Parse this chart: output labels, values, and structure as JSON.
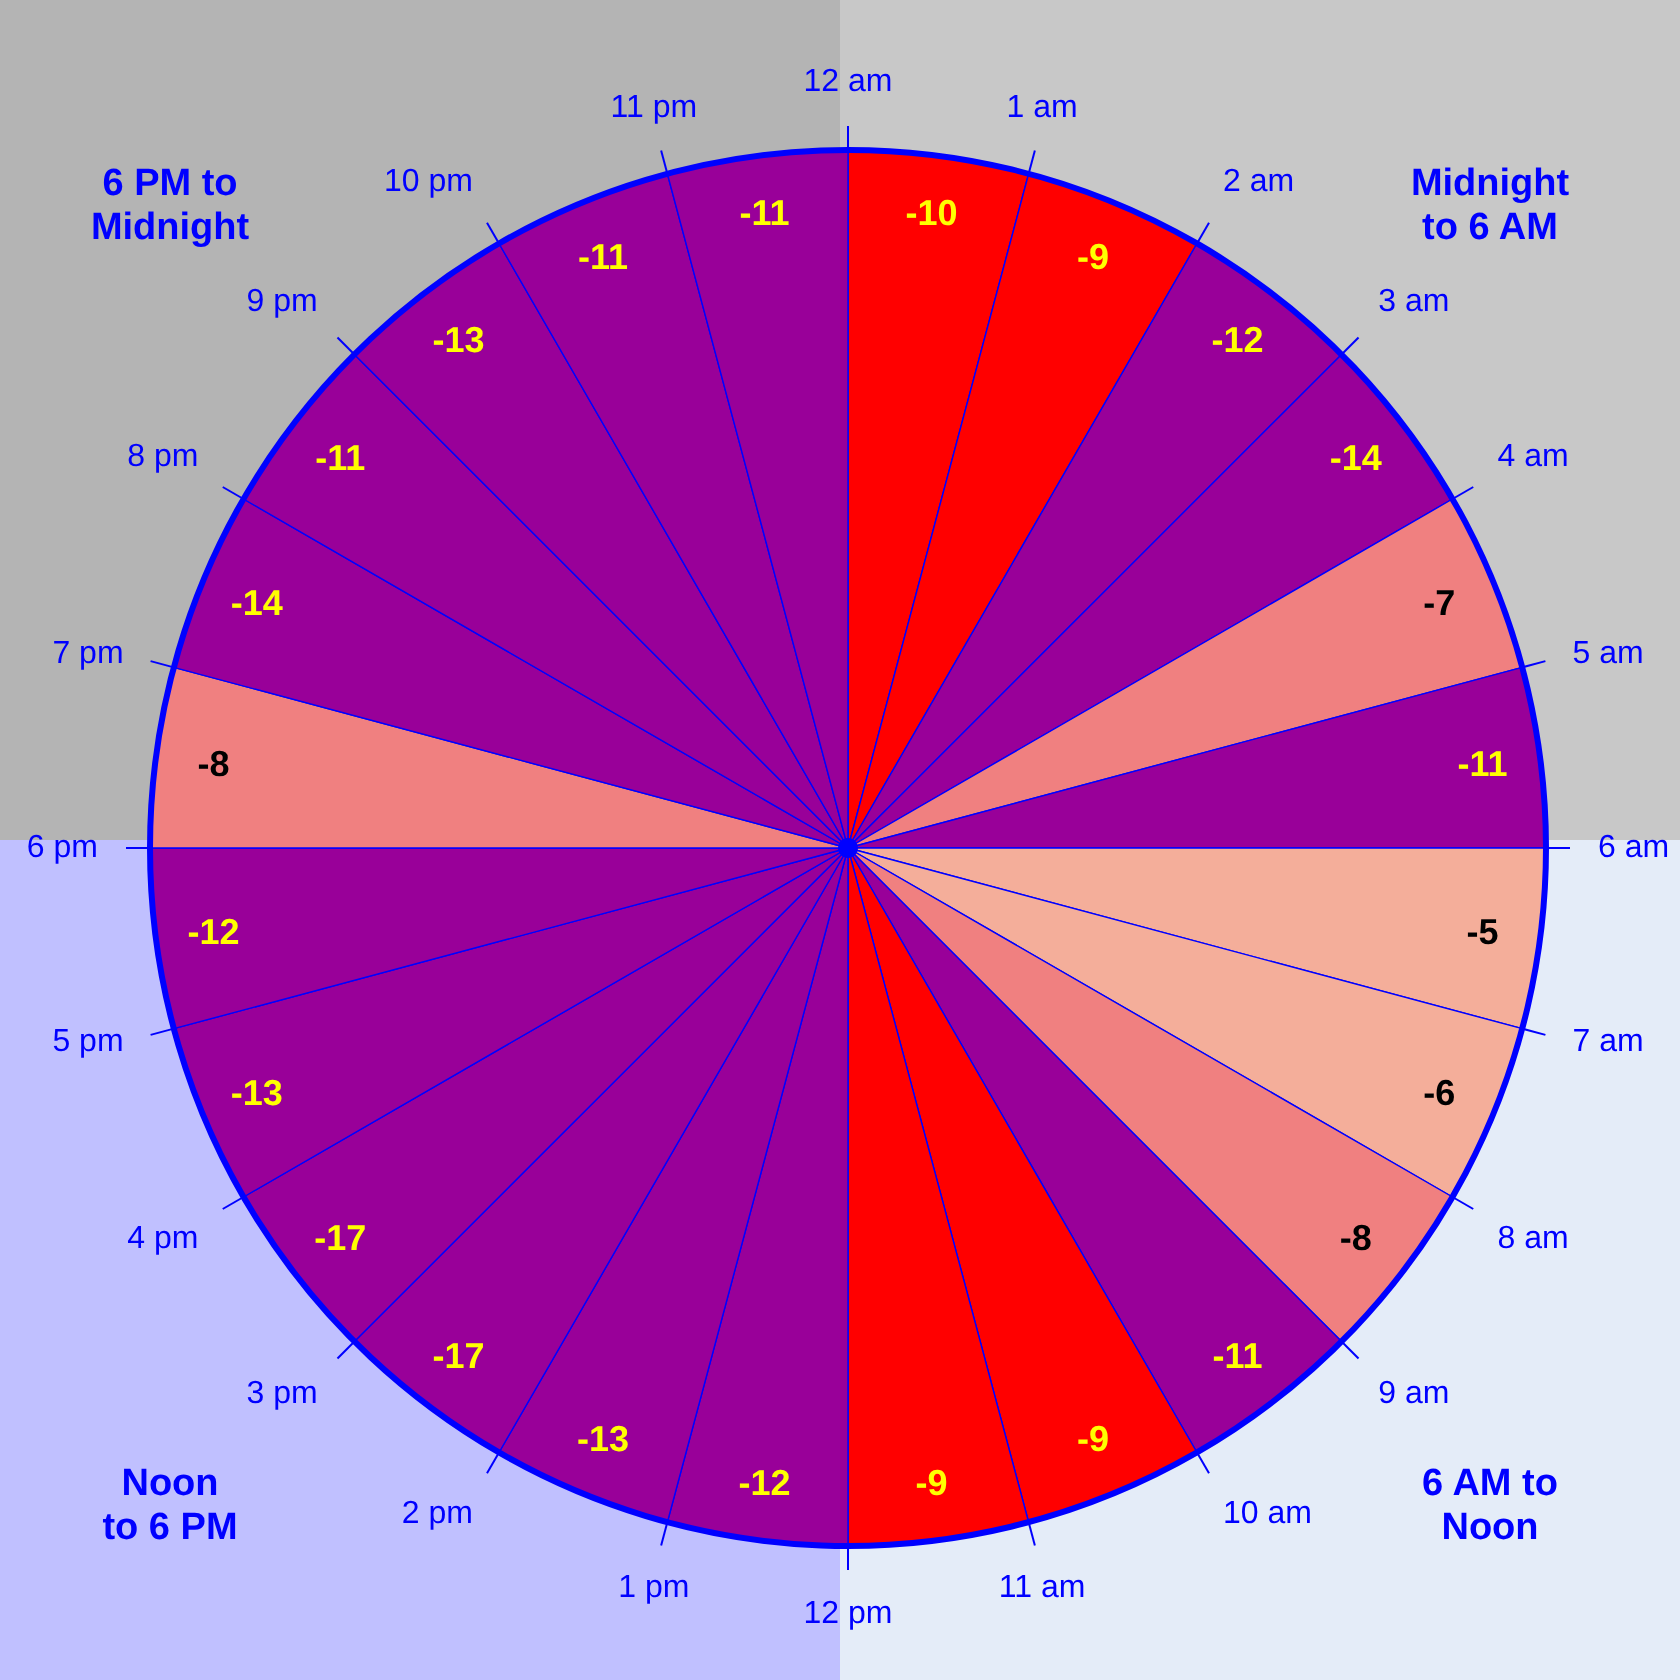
{
  "chart_data": {
    "type": "other",
    "categories": [
      "12 am",
      "1 am",
      "2 am",
      "3 am",
      "4 am",
      "5 am",
      "6 am",
      "7 am",
      "8 am",
      "9 am",
      "10 am",
      "11 am",
      "12 pm",
      "1 pm",
      "2 pm",
      "3 pm",
      "4 pm",
      "5 pm",
      "6 pm",
      "7 pm",
      "8 pm",
      "9 pm",
      "10 pm",
      "11 pm"
    ],
    "values": [
      -10,
      -9,
      -12,
      -14,
      -7,
      -11,
      -5,
      -6,
      -8,
      -11,
      -9,
      -9,
      -12,
      -13,
      -17,
      -17,
      -13,
      -12,
      -8,
      -14,
      -11,
      -13,
      -11,
      -11
    ],
    "colors": [
      "#ff0000",
      "#ff0000",
      "#990099",
      "#990099",
      "#f08080",
      "#990099",
      "#f4ae9a",
      "#f4ae9a",
      "#f08080",
      "#990099",
      "#ff0000",
      "#ff0000",
      "#990099",
      "#990099",
      "#990099",
      "#990099",
      "#990099",
      "#990099",
      "#f08080",
      "#990099",
      "#990099",
      "#990099",
      "#990099",
      "#990099"
    ],
    "data_labels": true,
    "annotations": [
      "6 PM to\nMidnight",
      "Midnight\nto 6 AM",
      "Noon\nto 6 PM",
      "6 AM to\nNoon"
    ]
  }
}
